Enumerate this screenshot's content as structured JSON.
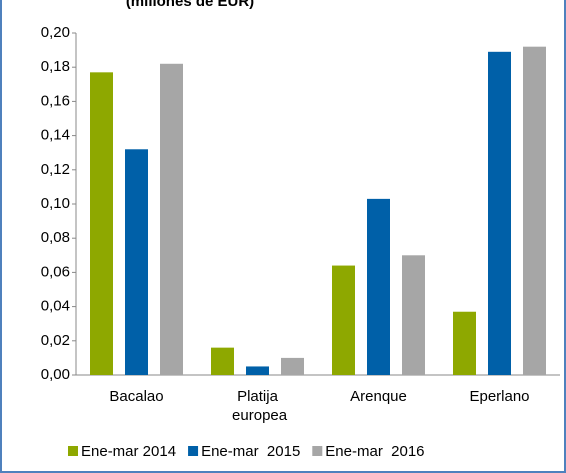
{
  "chart_data": {
    "type": "bar",
    "title": "(millones de EUR)",
    "categories": [
      "Bacalao",
      "Platija europea",
      "Arenque",
      "Eperlano"
    ],
    "series": [
      {
        "name": "Ene-mar 2014",
        "color": "#8ea800",
        "values": [
          0.177,
          0.016,
          0.064,
          0.037
        ]
      },
      {
        "name": "Ene-mar  2015",
        "color": "#0060a8",
        "values": [
          0.132,
          0.005,
          0.103,
          0.189
        ]
      },
      {
        "name": "Ene-mar  2016",
        "color": "#a6a6a6",
        "values": [
          0.182,
          0.01,
          0.07,
          0.192
        ]
      }
    ],
    "ylim": [
      0,
      0.2
    ],
    "yticks": [
      {
        "value": 0,
        "label": "0,00"
      },
      {
        "value": 0.02,
        "label": "0,02"
      },
      {
        "value": 0.04,
        "label": "0,04"
      },
      {
        "value": 0.06,
        "label": "0,06"
      },
      {
        "value": 0.08,
        "label": "0,08"
      },
      {
        "value": 0.1,
        "label": "0,10"
      },
      {
        "value": 0.12,
        "label": "0,12"
      },
      {
        "value": 0.14,
        "label": "0,14"
      },
      {
        "value": 0.16,
        "label": "0,16"
      },
      {
        "value": 0.18,
        "label": "0,18"
      },
      {
        "value": 0.2,
        "label": "0,20"
      }
    ],
    "grid": false
  }
}
